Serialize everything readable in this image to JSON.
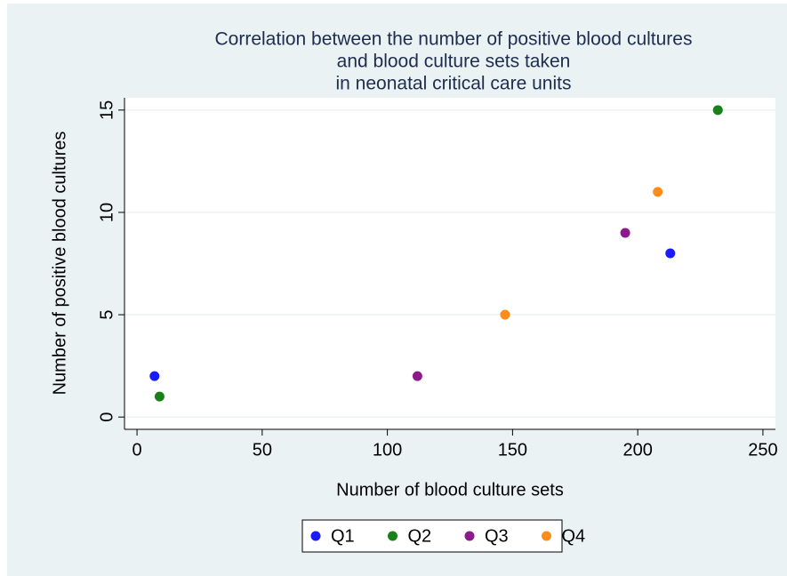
{
  "chart_data": {
    "type": "scatter",
    "title": [
      "Correlation between the number of positive blood cultures",
      "and blood culture sets taken",
      "in neonatal critical care units"
    ],
    "x_label": "Number of blood culture sets",
    "y_label": "Number of positive blood cultures",
    "series": [
      {
        "name": "Q1",
        "color": "#1a1aff",
        "x": [
          7,
          213
        ],
        "values": [
          2,
          8
        ]
      },
      {
        "name": "Q2",
        "color": "#1a801a",
        "x": [
          9,
          232
        ],
        "values": [
          1,
          15
        ]
      },
      {
        "name": "Q3",
        "color": "#8b1a8b",
        "x": [
          112,
          195
        ],
        "values": [
          2,
          9
        ]
      },
      {
        "name": "Q4",
        "color": "#ff8c1a",
        "x": [
          147,
          208
        ],
        "values": [
          5,
          11
        ]
      }
    ],
    "xlim": [
      -5,
      255
    ],
    "xticks": [
      0,
      50,
      100,
      150,
      200,
      250
    ],
    "ylim": [
      -0.6,
      15.6
    ],
    "yticks": [
      0,
      5,
      10,
      15
    ],
    "grid": true,
    "legend": "bottom"
  }
}
